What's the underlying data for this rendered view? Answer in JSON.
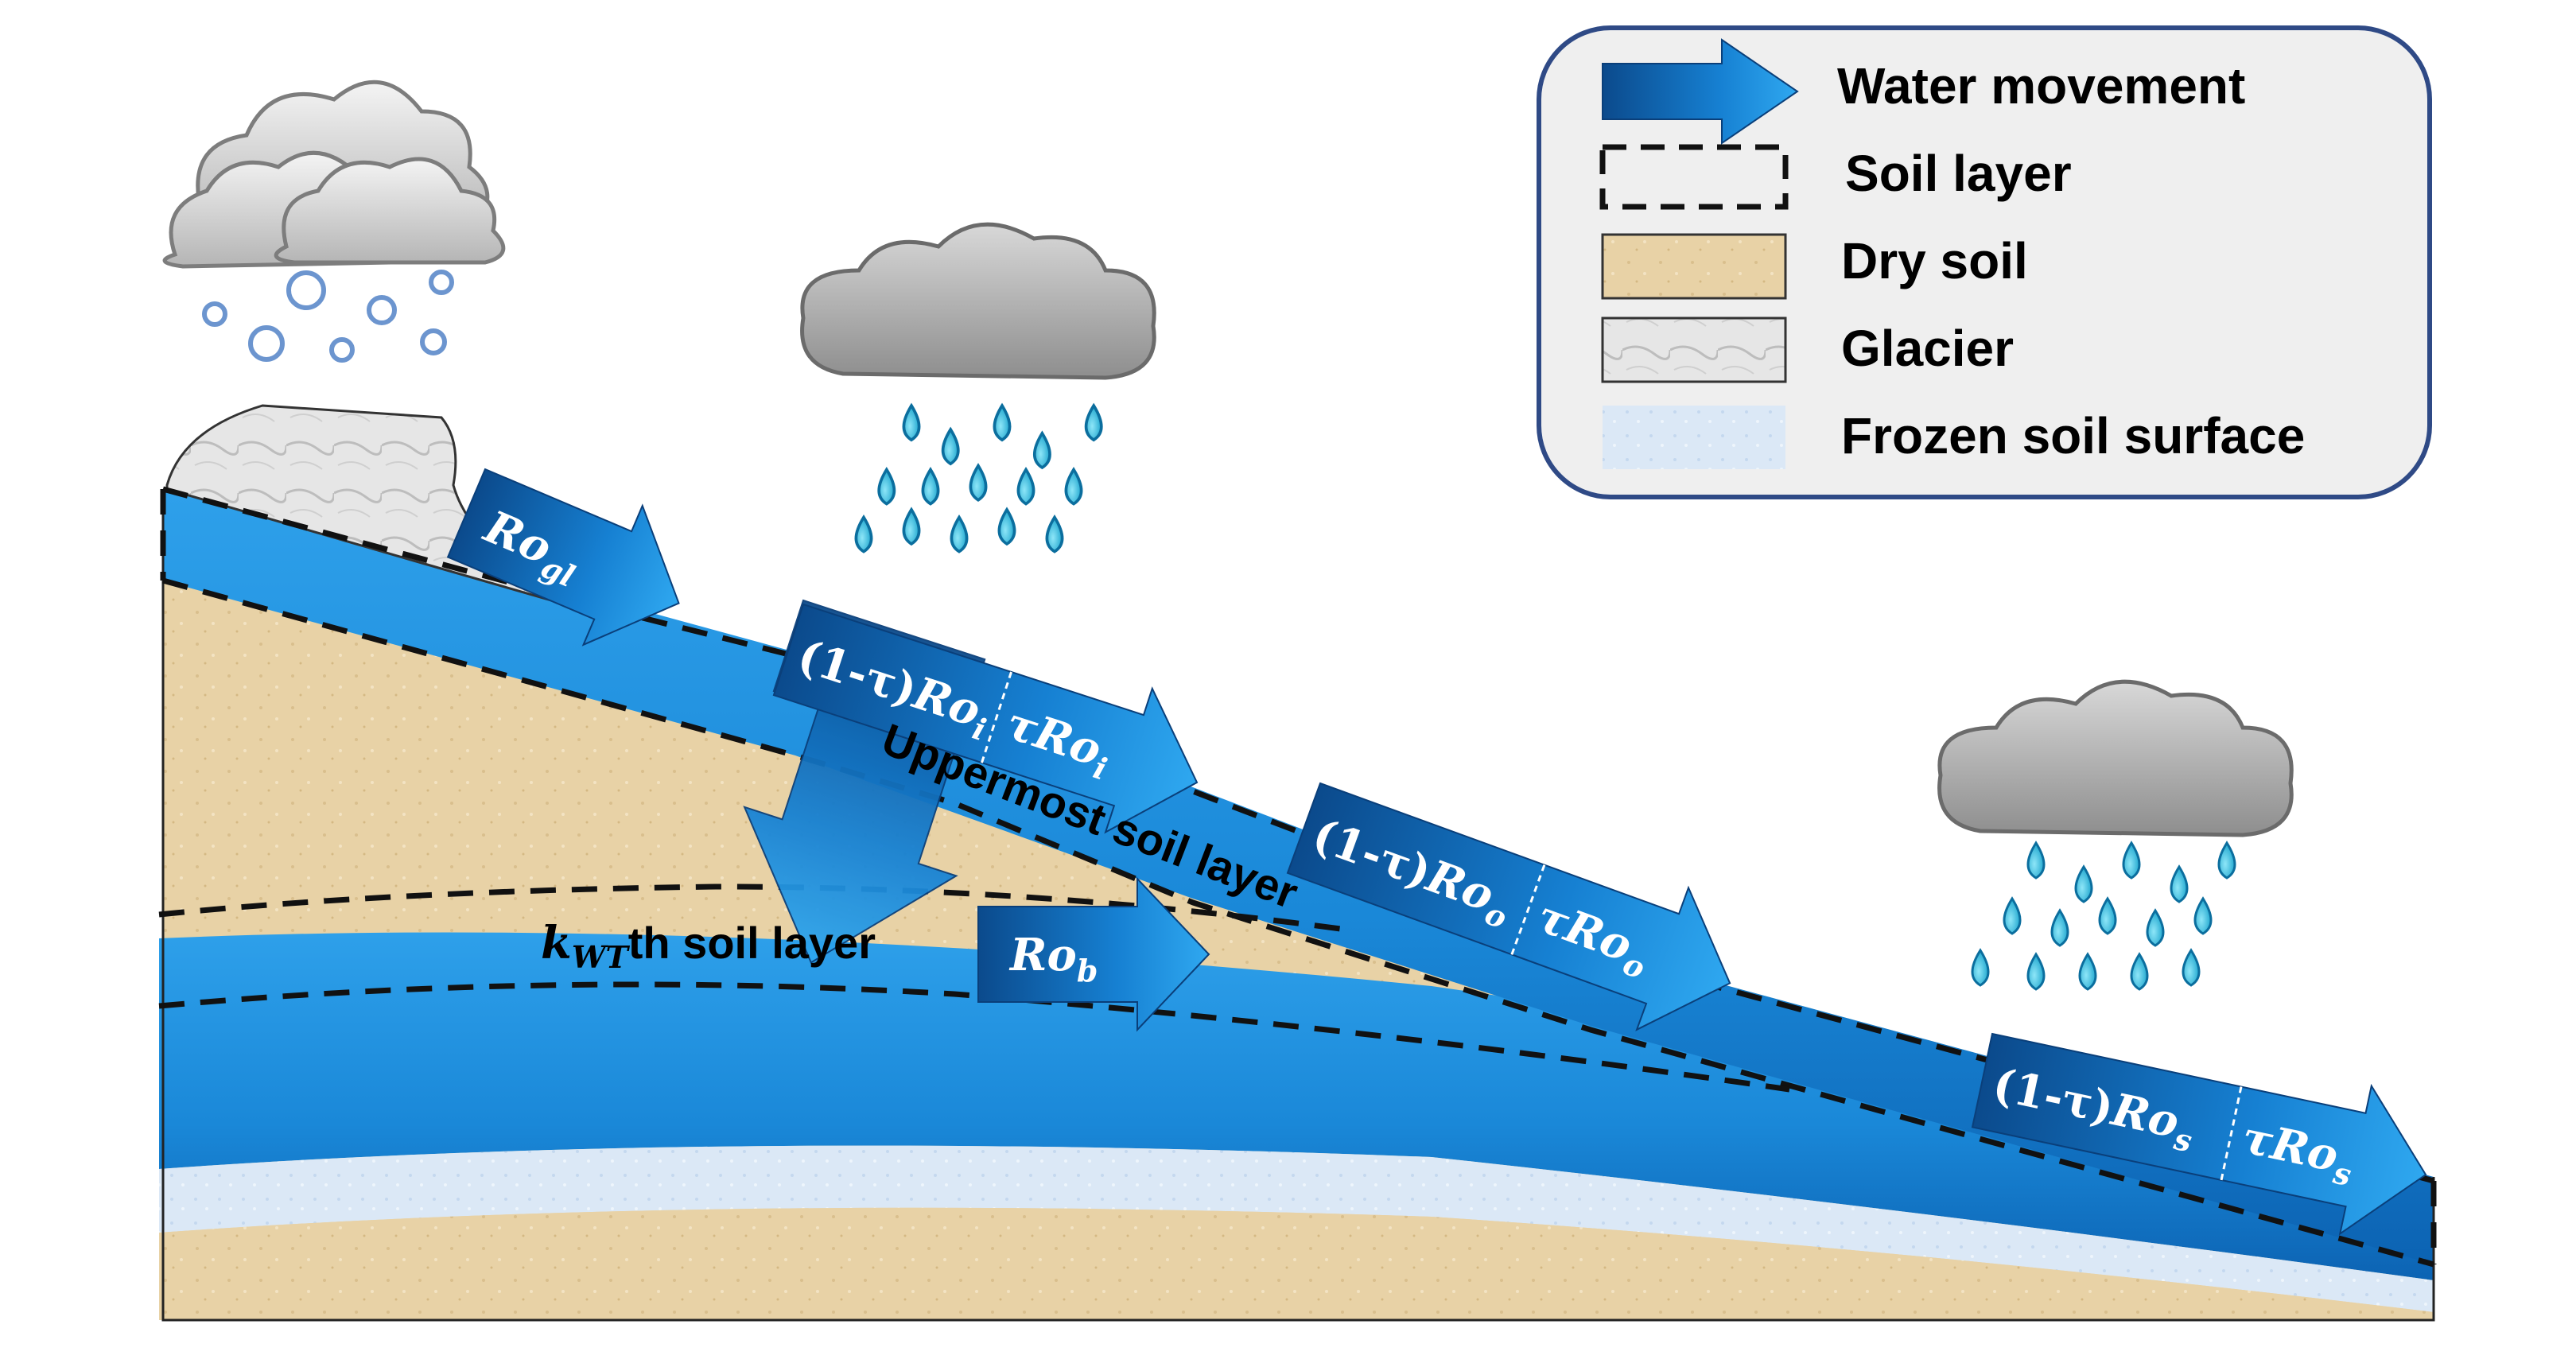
{
  "legend": {
    "water_movement": "Water movement",
    "soil_layer": "Soil layer",
    "dry_soil": "Dry soil",
    "glacier": "Glacier",
    "frozen_soil_surface": "Frozen soil surface"
  },
  "labels": {
    "uppermost": "Uppermost soil layer",
    "kwt_var": "k",
    "kwt_sub": "WT",
    "kwt_rest": "th soil layer"
  },
  "arrows": {
    "ro_gl": {
      "base": "Ro",
      "sub": "gl"
    },
    "ro_i_down": {
      "prefix": "(1-τ)",
      "base": "Ro",
      "sub": "i"
    },
    "ro_i_right": {
      "prefix": "τ",
      "base": "Ro",
      "sub": "i"
    },
    "ro_o_down": {
      "prefix": "(1-τ)",
      "base": "Ro",
      "sub": "o"
    },
    "ro_o_right": {
      "prefix": "τ",
      "base": "Ro",
      "sub": "o"
    },
    "ro_s_down": {
      "prefix": "(1-τ)",
      "base": "Ro",
      "sub": "s"
    },
    "ro_s_right": {
      "prefix": "τ",
      "base": "Ro",
      "sub": "s"
    },
    "ro_b": {
      "base": "Ro",
      "sub": "b"
    }
  },
  "colors": {
    "water_dark": "#0a4f95",
    "water_light": "#1f9be8",
    "dry_soil": "#e9d3a8",
    "glacier": "#dcdcdc",
    "frozen": "#d8e7f5",
    "legend_bg": "#efefef",
    "legend_border": "#2f4a86",
    "raindrop": "#19b6e0",
    "cloud": "#a9a9a9"
  },
  "icons": [
    "snow-cloud-icon",
    "rain-cloud-icon",
    "rain-cloud-icon"
  ]
}
